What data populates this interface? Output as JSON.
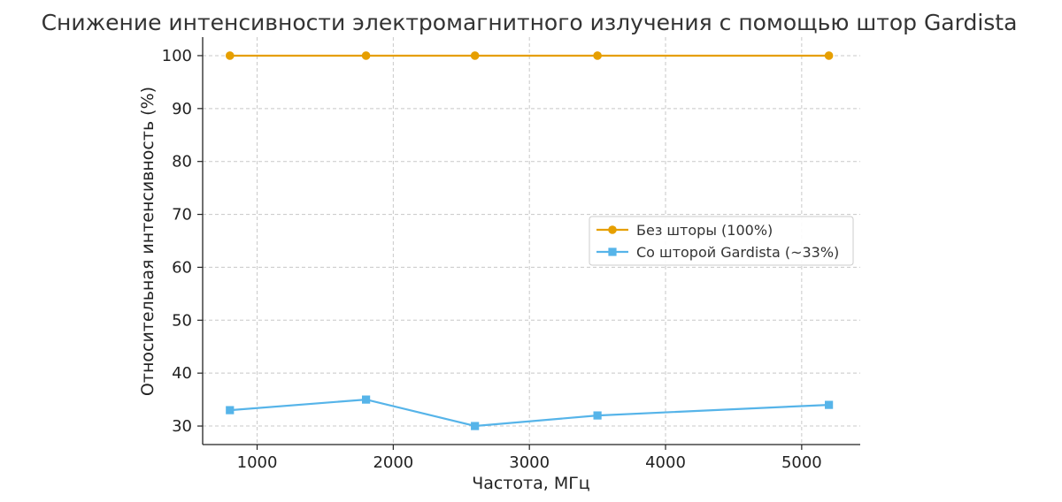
{
  "chart_data": {
    "type": "line",
    "title": "Снижение интенсивности электромагнитного излучения с помощью штор Gardista",
    "xlabel": "Частота, МГц",
    "ylabel": "Относительная интенсивность (%)",
    "xlim": [
      600,
      5430
    ],
    "ylim": [
      26.5,
      103.5
    ],
    "xticks": [
      1000,
      2000,
      3000,
      4000,
      5000
    ],
    "yticks": [
      30,
      40,
      50,
      60,
      70,
      80,
      90,
      100
    ],
    "grid": true,
    "legend_position": "center-right",
    "x": [
      800,
      1800,
      2600,
      3500,
      5200
    ],
    "series": [
      {
        "name": "Без шторы (100%)",
        "values": [
          100,
          100,
          100,
          100,
          100
        ],
        "color": "#E69F00",
        "marker": "circle"
      },
      {
        "name": "Со шторой Gardista (~33%)",
        "values": [
          33,
          35,
          30,
          32,
          34
        ],
        "color": "#56B4E9",
        "marker": "square"
      }
    ]
  }
}
